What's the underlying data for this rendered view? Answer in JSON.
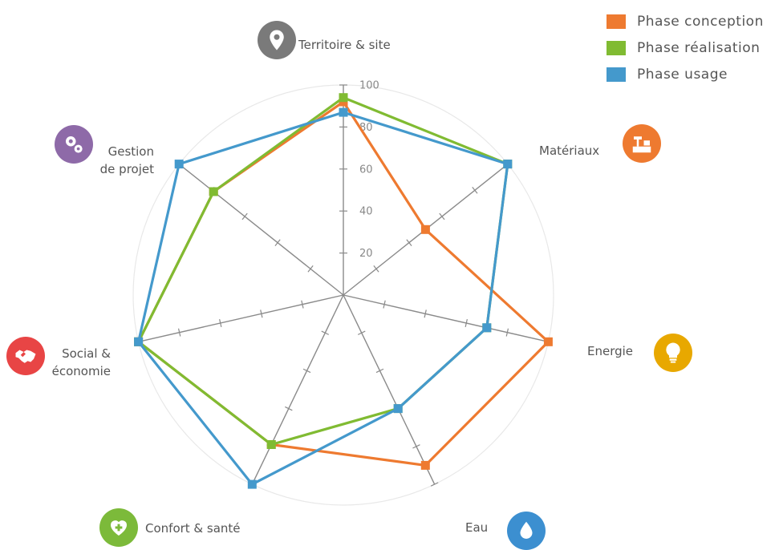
{
  "chart_data": {
    "type": "radar",
    "categories": [
      "Territoire & site",
      "Matériaux",
      "Energie",
      "Eau",
      "Confort & santé",
      "Social & économie",
      "Gestion de projet"
    ],
    "category_labels": [
      [
        "Territoire & site"
      ],
      [
        "Matériaux"
      ],
      [
        "Energie"
      ],
      [
        "Eau"
      ],
      [
        "Confort & santé"
      ],
      [
        "Social &",
        "économie"
      ],
      [
        "Gestion",
        "de projet"
      ]
    ],
    "ticks": [
      "20",
      "40",
      "60",
      "80",
      "100"
    ],
    "rlim": [
      0,
      100
    ],
    "series": [
      {
        "name": "Phase conception",
        "color": "#ee7a30",
        "values": [
          92,
          50,
          100,
          90,
          79,
          100,
          79
        ]
      },
      {
        "name": "Phase réalisation",
        "color": "#80bb32",
        "values": [
          94,
          100,
          70,
          60,
          79,
          100,
          79
        ]
      },
      {
        "name": "Phase usage",
        "color": "#4499cc",
        "values": [
          87,
          100,
          70,
          60,
          100,
          100,
          100
        ]
      }
    ],
    "legend_position": "top-right"
  },
  "icons": [
    {
      "name": "map-pin-icon",
      "color": "#7a7a7a"
    },
    {
      "name": "tools-icon",
      "color": "#ee7a30"
    },
    {
      "name": "lightbulb-icon",
      "color": "#e8a800"
    },
    {
      "name": "water-drop-icon",
      "color": "#3c8fd0"
    },
    {
      "name": "health-icon",
      "color": "#7cba3a"
    },
    {
      "name": "handshake-icon",
      "color": "#e84545"
    },
    {
      "name": "gears-icon",
      "color": "#8e6aa8"
    }
  ]
}
